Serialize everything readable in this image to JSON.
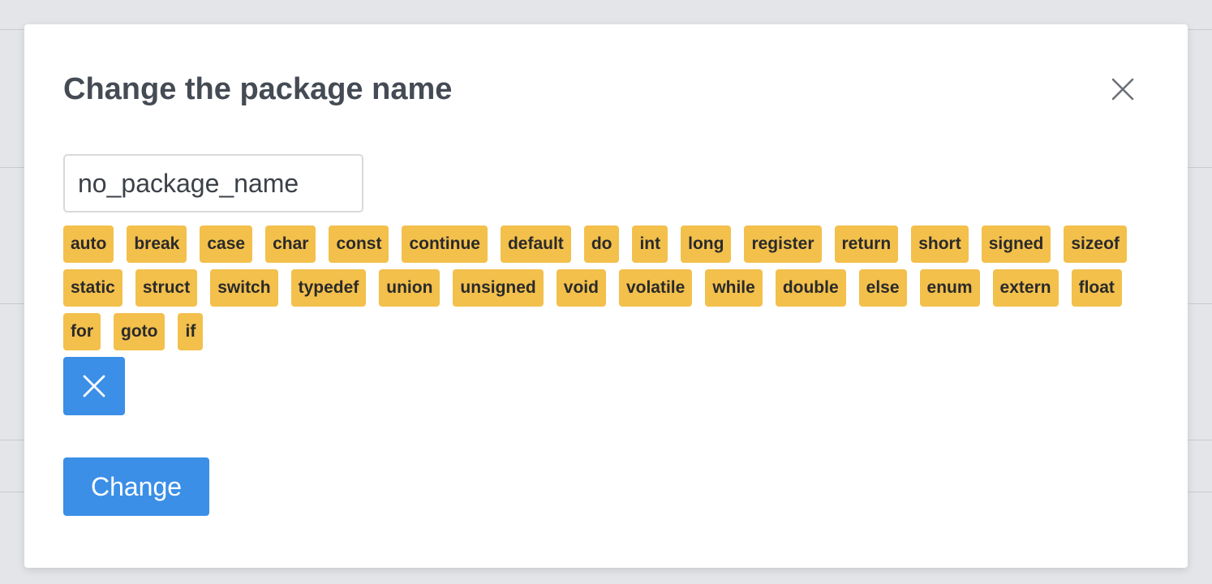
{
  "modal": {
    "title": "Change the package name",
    "input_value": "no_package_name",
    "keywords": [
      "auto",
      "break",
      "case",
      "char",
      "const",
      "continue",
      "default",
      "do",
      "int",
      "long",
      "register",
      "return",
      "short",
      "signed",
      "sizeof",
      "static",
      "struct",
      "switch",
      "typedef",
      "union",
      "unsigned",
      "void",
      "volatile",
      "while",
      "double",
      "else",
      "enum",
      "extern",
      "float",
      "for",
      "goto",
      "if"
    ],
    "change_label": "Change"
  },
  "icons": {
    "close": "close-icon",
    "clear": "x-icon"
  },
  "colors": {
    "accent": "#3b8fe6",
    "tag": "#f3c04c",
    "title": "#454b54"
  }
}
